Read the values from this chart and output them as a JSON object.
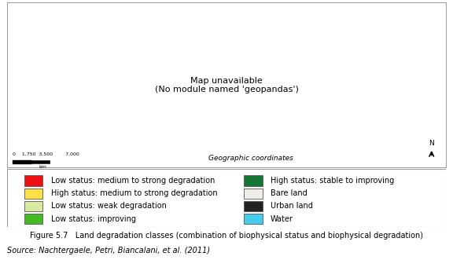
{
  "figure_title": "Figure 5.7   Land degradation classes (combination of biophysical status and biophysical degradation)",
  "source_text": "Source: Nachtergaele, Petri, Biancalani, et al. (2011)",
  "geo_coord_text": "Geographic coordinates",
  "legend_items_left": [
    {
      "color": "#EE1111",
      "label": "Low status: medium to strong degradation"
    },
    {
      "color": "#FFE044",
      "label": "High status: medium to strong degradation"
    },
    {
      "color": "#D8EAA0",
      "label": "Low status: weak degradation"
    },
    {
      "color": "#44BB22",
      "label": "Low status: improving"
    }
  ],
  "legend_items_right": [
    {
      "color": "#117733",
      "label": "High status: stable to improving"
    },
    {
      "color": "#F0EDE8",
      "label": "Bare land"
    },
    {
      "color": "#222222",
      "label": "Urban land"
    },
    {
      "color": "#44CCEE",
      "label": "Water"
    }
  ],
  "map_bg_color": "#FFFFFF",
  "border_color": "#888888",
  "fig_caption_fontsize": 7.0,
  "source_fontsize": 7.0,
  "legend_fontsize": 7.0,
  "map_frame_color": "#999999",
  "scale_numbers": "0    1,750  3,500        7,000",
  "scale_km": "km"
}
